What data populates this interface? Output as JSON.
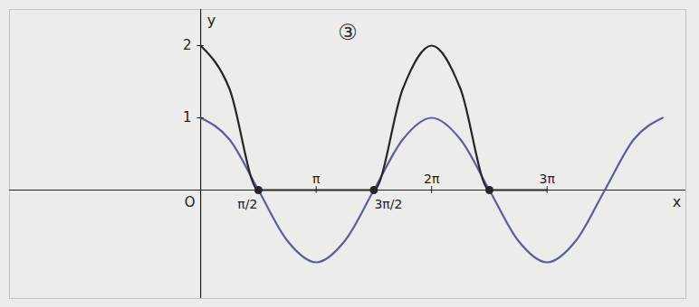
{
  "chart_data": {
    "type": "line",
    "title": "③",
    "x_label": "x",
    "y_label": "y",
    "origin_label": "O",
    "xlim": [
      -5.2,
      13.2
    ],
    "ylim": [
      -1.5,
      2.5
    ],
    "xticks": [
      {
        "value": 1.5708,
        "label": "π/2"
      },
      {
        "value": 3.1416,
        "label": "π"
      },
      {
        "value": 4.7124,
        "label": "3π/2"
      },
      {
        "value": 6.2832,
        "label": "2π"
      },
      {
        "value": 9.4248,
        "label": "3π"
      }
    ],
    "yticks": [
      1,
      2
    ],
    "series": [
      {
        "type": "line",
        "color": "#5b5e9e",
        "x": [
          0,
          0.785,
          1.571,
          2.356,
          3.142,
          3.927,
          4.712,
          5.498,
          6.283,
          7.069,
          7.854,
          8.639,
          9.425,
          10.21,
          10.996,
          11.781,
          12.566
        ],
        "values": [
          1,
          0.7,
          0,
          -0.7,
          -1,
          -0.7,
          0,
          0.7,
          1,
          0.7,
          0,
          -0.7,
          -1,
          -0.7,
          0,
          0.7,
          1
        ]
      },
      {
        "type": "line",
        "color": "#262626",
        "x": [
          0,
          0.785,
          1.571,
          2.356,
          3.142,
          3.927,
          4.712,
          5.498,
          6.283,
          7.069,
          7.854,
          8.639,
          9.425
        ],
        "values": [
          2,
          1.4,
          0,
          0,
          0,
          0,
          0,
          1.4,
          2,
          1.4,
          0,
          0,
          0
        ]
      },
      {
        "type": "scatter",
        "color": "#262626",
        "x": [
          1.571,
          4.712,
          7.854
        ],
        "values": [
          0,
          0,
          0
        ]
      }
    ]
  }
}
